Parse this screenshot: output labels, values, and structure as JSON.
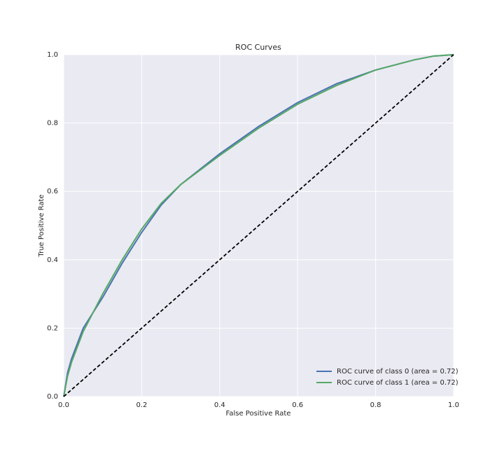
{
  "chart_data": {
    "type": "line",
    "title": "ROC Curves",
    "x_label": "False Positive Rate",
    "y_label": "True Positive Rate",
    "x": [
      0,
      0.01,
      0.02,
      0.05,
      0.1,
      0.15,
      0.2,
      0.25,
      0.3,
      0.4,
      0.5,
      0.6,
      0.7,
      0.8,
      0.9,
      0.95,
      1.0
    ],
    "series": [
      {
        "name": "ROC curve of class 0 (area = 0.72)",
        "color": "#4c72b0",
        "values": [
          0,
          0.07,
          0.11,
          0.2,
          0.29,
          0.39,
          0.48,
          0.56,
          0.62,
          0.71,
          0.79,
          0.86,
          0.915,
          0.955,
          0.985,
          0.996,
          1
        ]
      },
      {
        "name": "ROC curve of class 1 (area = 0.72)",
        "color": "#55a868",
        "values": [
          0,
          0.06,
          0.1,
          0.19,
          0.3,
          0.4,
          0.49,
          0.565,
          0.62,
          0.705,
          0.785,
          0.855,
          0.91,
          0.955,
          0.985,
          0.996,
          1
        ]
      }
    ],
    "diagonal": {
      "x": [
        0,
        1
      ],
      "values": [
        0,
        1
      ],
      "color": "#000000",
      "dashed": true
    },
    "xlim": [
      0,
      1
    ],
    "ylim": [
      0,
      1
    ],
    "xticks": [
      {
        "value": 0,
        "label": "0.0"
      },
      0.2,
      0.4,
      0.6,
      0.8,
      {
        "value": 1,
        "label": "1.0"
      }
    ],
    "yticks": [
      {
        "value": 0,
        "label": "0.0"
      },
      0.2,
      0.4,
      0.6,
      0.8,
      {
        "value": 1,
        "label": "1.0"
      }
    ],
    "grid": true,
    "legend": "lower right"
  }
}
